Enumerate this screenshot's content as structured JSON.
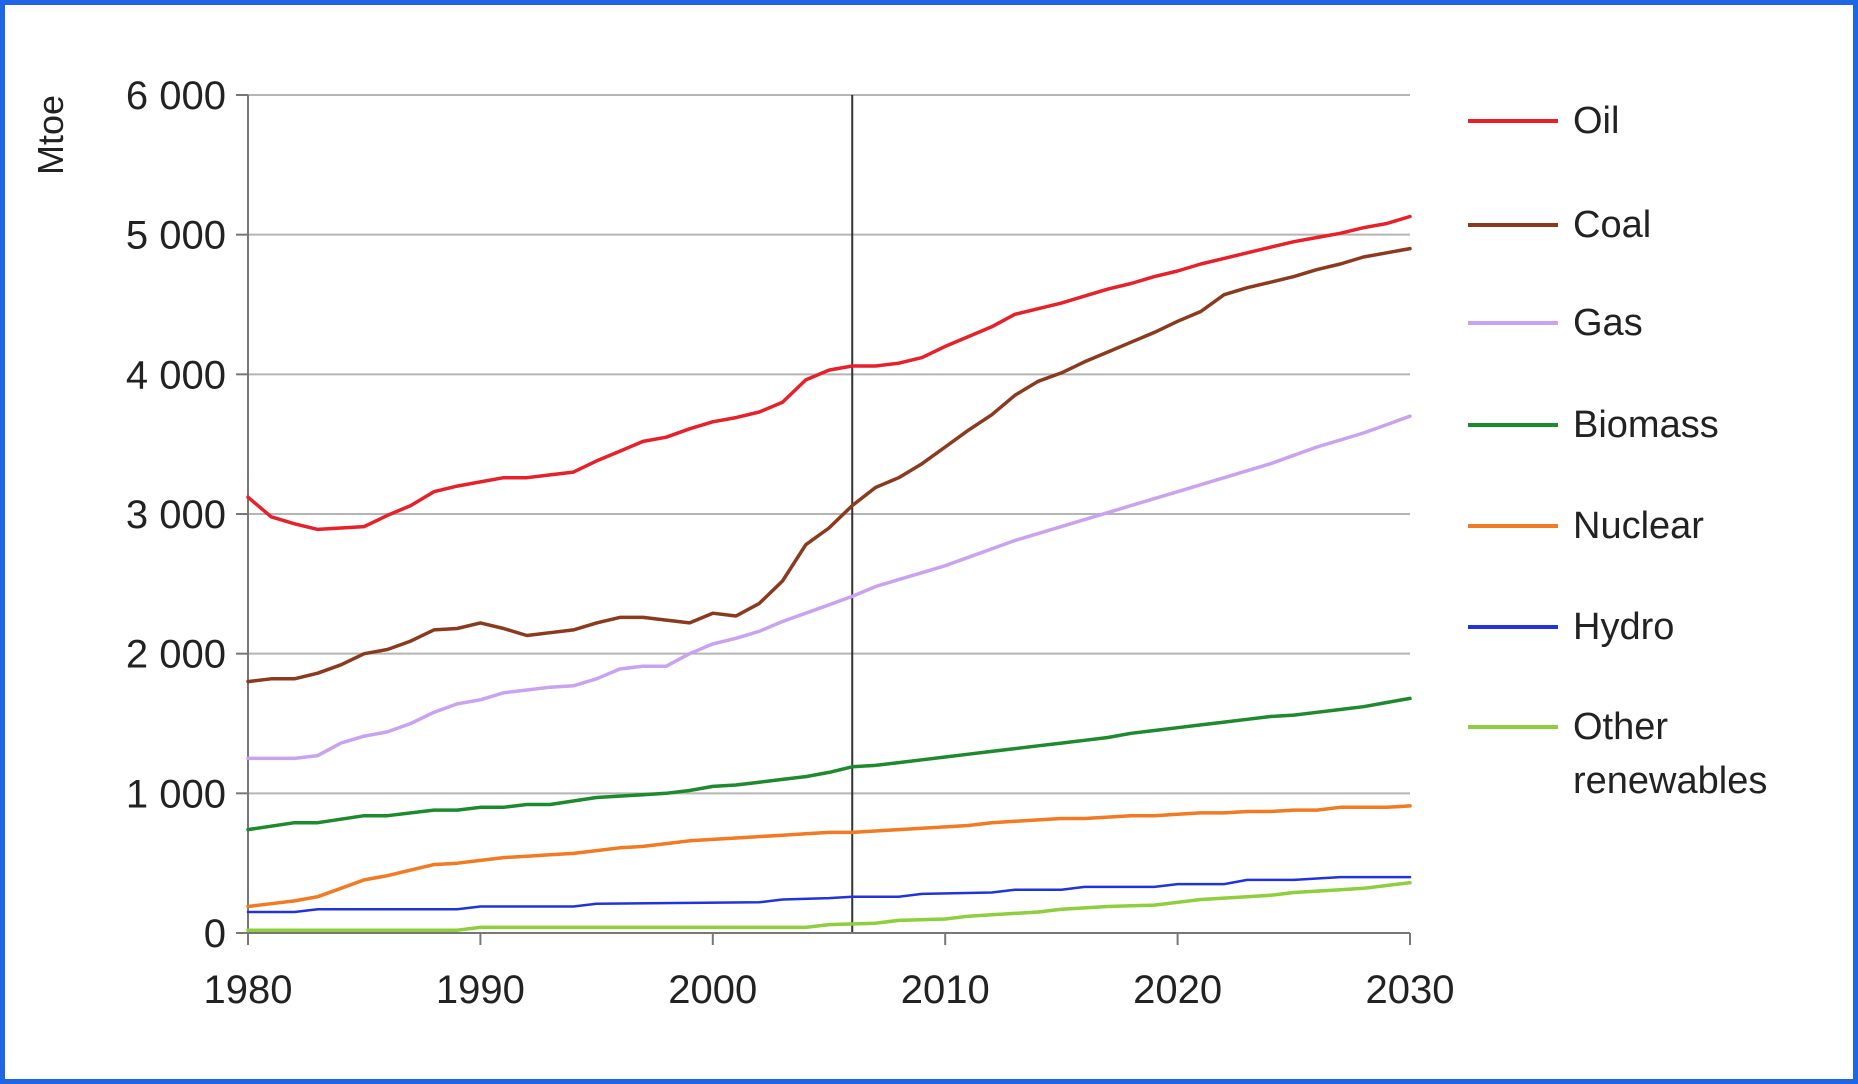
{
  "frame_color": "#1f66e5",
  "chart_data": {
    "type": "line",
    "title": "",
    "xlabel": "",
    "ylabel": "Mtoe",
    "xlim": [
      1980,
      2030
    ],
    "ylim": [
      0,
      6000
    ],
    "x_ticks": [
      1980,
      1990,
      2000,
      2010,
      2020,
      2030
    ],
    "y_ticks": [
      0,
      1000,
      2000,
      3000,
      4000,
      5000,
      6000
    ],
    "y_tick_labels": [
      "0",
      "1 000",
      "2 000",
      "3 000",
      "4 000",
      "5 000",
      "6 000"
    ],
    "grid": "horizontal",
    "vertical_markers": [
      1980,
      2006
    ],
    "legend_position": "right",
    "x": [
      1980,
      1985,
      1990,
      1995,
      2000,
      2005,
      2006,
      2010,
      2015,
      2020,
      2025,
      2030
    ],
    "series": [
      {
        "name": "Oil",
        "color": "#e8202a",
        "points": [
          [
            1980,
            3120
          ],
          [
            1981,
            2980
          ],
          [
            1982,
            2930
          ],
          [
            1983,
            2890
          ],
          [
            1984,
            2900
          ],
          [
            1985,
            2910
          ],
          [
            1986,
            2990
          ],
          [
            1987,
            3060
          ],
          [
            1988,
            3160
          ],
          [
            1989,
            3200
          ],
          [
            1990,
            3230
          ],
          [
            1991,
            3260
          ],
          [
            1992,
            3260
          ],
          [
            1993,
            3280
          ],
          [
            1994,
            3300
          ],
          [
            1995,
            3380
          ],
          [
            1996,
            3450
          ],
          [
            1997,
            3520
          ],
          [
            1998,
            3550
          ],
          [
            1999,
            3610
          ],
          [
            2000,
            3660
          ],
          [
            2001,
            3690
          ],
          [
            2002,
            3730
          ],
          [
            2003,
            3800
          ],
          [
            2004,
            3960
          ],
          [
            2005,
            4030
          ],
          [
            2006,
            4060
          ],
          [
            2007,
            4060
          ],
          [
            2008,
            4080
          ],
          [
            2009,
            4120
          ],
          [
            2010,
            4200
          ],
          [
            2011,
            4270
          ],
          [
            2012,
            4340
          ],
          [
            2013,
            4430
          ],
          [
            2014,
            4470
          ],
          [
            2015,
            4510
          ],
          [
            2016,
            4560
          ],
          [
            2017,
            4610
          ],
          [
            2018,
            4650
          ],
          [
            2019,
            4700
          ],
          [
            2020,
            4740
          ],
          [
            2021,
            4790
          ],
          [
            2022,
            4830
          ],
          [
            2023,
            4870
          ],
          [
            2024,
            4910
          ],
          [
            2025,
            4950
          ],
          [
            2026,
            4980
          ],
          [
            2027,
            5010
          ],
          [
            2028,
            5050
          ],
          [
            2029,
            5080
          ],
          [
            2030,
            5130
          ]
        ]
      },
      {
        "name": "Coal",
        "color": "#8b3a1e",
        "points": [
          [
            1980,
            1800
          ],
          [
            1981,
            1820
          ],
          [
            1982,
            1820
          ],
          [
            1983,
            1860
          ],
          [
            1984,
            1920
          ],
          [
            1985,
            2000
          ],
          [
            1986,
            2030
          ],
          [
            1987,
            2090
          ],
          [
            1988,
            2170
          ],
          [
            1989,
            2180
          ],
          [
            1990,
            2220
          ],
          [
            1991,
            2180
          ],
          [
            1992,
            2130
          ],
          [
            1993,
            2150
          ],
          [
            1994,
            2170
          ],
          [
            1995,
            2220
          ],
          [
            1996,
            2260
          ],
          [
            1997,
            2260
          ],
          [
            1998,
            2240
          ],
          [
            1999,
            2220
          ],
          [
            2000,
            2290
          ],
          [
            2001,
            2270
          ],
          [
            2002,
            2360
          ],
          [
            2003,
            2520
          ],
          [
            2004,
            2780
          ],
          [
            2005,
            2900
          ],
          [
            2006,
            3060
          ],
          [
            2007,
            3190
          ],
          [
            2008,
            3260
          ],
          [
            2009,
            3360
          ],
          [
            2010,
            3480
          ],
          [
            2011,
            3600
          ],
          [
            2012,
            3710
          ],
          [
            2013,
            3850
          ],
          [
            2014,
            3950
          ],
          [
            2015,
            4010
          ],
          [
            2016,
            4090
          ],
          [
            2017,
            4160
          ],
          [
            2018,
            4230
          ],
          [
            2019,
            4300
          ],
          [
            2020,
            4380
          ],
          [
            2021,
            4450
          ],
          [
            2022,
            4570
          ],
          [
            2023,
            4620
          ],
          [
            2024,
            4660
          ],
          [
            2025,
            4700
          ],
          [
            2026,
            4750
          ],
          [
            2027,
            4790
          ],
          [
            2028,
            4840
          ],
          [
            2029,
            4870
          ],
          [
            2030,
            4900
          ]
        ]
      },
      {
        "name": "Gas",
        "color": "#c9a3ef",
        "points": [
          [
            1980,
            1250
          ],
          [
            1982,
            1250
          ],
          [
            1983,
            1270
          ],
          [
            1984,
            1360
          ],
          [
            1985,
            1410
          ],
          [
            1986,
            1440
          ],
          [
            1987,
            1500
          ],
          [
            1988,
            1580
          ],
          [
            1989,
            1640
          ],
          [
            1990,
            1670
          ],
          [
            1991,
            1720
          ],
          [
            1992,
            1740
          ],
          [
            1993,
            1760
          ],
          [
            1994,
            1770
          ],
          [
            1995,
            1820
          ],
          [
            1996,
            1890
          ],
          [
            1997,
            1910
          ],
          [
            1998,
            1910
          ],
          [
            1999,
            2000
          ],
          [
            2000,
            2070
          ],
          [
            2001,
            2110
          ],
          [
            2002,
            2160
          ],
          [
            2003,
            2230
          ],
          [
            2004,
            2290
          ],
          [
            2005,
            2350
          ],
          [
            2006,
            2410
          ],
          [
            2007,
            2480
          ],
          [
            2008,
            2530
          ],
          [
            2009,
            2580
          ],
          [
            2010,
            2630
          ],
          [
            2011,
            2690
          ],
          [
            2012,
            2750
          ],
          [
            2013,
            2810
          ],
          [
            2014,
            2860
          ],
          [
            2015,
            2910
          ],
          [
            2016,
            2960
          ],
          [
            2017,
            3010
          ],
          [
            2018,
            3060
          ],
          [
            2019,
            3110
          ],
          [
            2020,
            3160
          ],
          [
            2021,
            3210
          ],
          [
            2022,
            3260
          ],
          [
            2023,
            3310
          ],
          [
            2024,
            3360
          ],
          [
            2025,
            3420
          ],
          [
            2026,
            3480
          ],
          [
            2027,
            3530
          ],
          [
            2028,
            3580
          ],
          [
            2029,
            3640
          ],
          [
            2030,
            3700
          ]
        ]
      },
      {
        "name": "Biomass",
        "color": "#1e8a2e",
        "points": [
          [
            1980,
            740
          ],
          [
            1982,
            790
          ],
          [
            1983,
            790
          ],
          [
            1985,
            840
          ],
          [
            1986,
            840
          ],
          [
            1988,
            880
          ],
          [
            1989,
            880
          ],
          [
            1990,
            900
          ],
          [
            1991,
            900
          ],
          [
            1992,
            920
          ],
          [
            1993,
            920
          ],
          [
            1995,
            970
          ],
          [
            1996,
            980
          ],
          [
            1997,
            990
          ],
          [
            1998,
            1000
          ],
          [
            1999,
            1020
          ],
          [
            2000,
            1050
          ],
          [
            2001,
            1060
          ],
          [
            2002,
            1080
          ],
          [
            2003,
            1100
          ],
          [
            2004,
            1120
          ],
          [
            2005,
            1150
          ],
          [
            2006,
            1190
          ],
          [
            2007,
            1200
          ],
          [
            2008,
            1220
          ],
          [
            2009,
            1240
          ],
          [
            2010,
            1260
          ],
          [
            2011,
            1280
          ],
          [
            2012,
            1300
          ],
          [
            2013,
            1320
          ],
          [
            2014,
            1340
          ],
          [
            2015,
            1360
          ],
          [
            2016,
            1380
          ],
          [
            2017,
            1400
          ],
          [
            2018,
            1430
          ],
          [
            2019,
            1450
          ],
          [
            2020,
            1470
          ],
          [
            2021,
            1490
          ],
          [
            2022,
            1510
          ],
          [
            2023,
            1530
          ],
          [
            2024,
            1550
          ],
          [
            2025,
            1560
          ],
          [
            2026,
            1580
          ],
          [
            2027,
            1600
          ],
          [
            2028,
            1620
          ],
          [
            2029,
            1650
          ],
          [
            2030,
            1680
          ]
        ]
      },
      {
        "name": "Nuclear",
        "color": "#f27a22",
        "points": [
          [
            1980,
            190
          ],
          [
            1981,
            210
          ],
          [
            1982,
            230
          ],
          [
            1983,
            260
          ],
          [
            1984,
            320
          ],
          [
            1985,
            380
          ],
          [
            1986,
            410
          ],
          [
            1987,
            450
          ],
          [
            1988,
            490
          ],
          [
            1989,
            500
          ],
          [
            1990,
            520
          ],
          [
            1991,
            540
          ],
          [
            1992,
            550
          ],
          [
            1993,
            560
          ],
          [
            1994,
            570
          ],
          [
            1995,
            590
          ],
          [
            1996,
            610
          ],
          [
            1997,
            620
          ],
          [
            1998,
            640
          ],
          [
            1999,
            660
          ],
          [
            2000,
            670
          ],
          [
            2001,
            680
          ],
          [
            2002,
            690
          ],
          [
            2003,
            700
          ],
          [
            2004,
            710
          ],
          [
            2005,
            720
          ],
          [
            2006,
            720
          ],
          [
            2007,
            730
          ],
          [
            2008,
            740
          ],
          [
            2009,
            750
          ],
          [
            2010,
            760
          ],
          [
            2011,
            770
          ],
          [
            2012,
            790
          ],
          [
            2013,
            800
          ],
          [
            2014,
            810
          ],
          [
            2015,
            820
          ],
          [
            2016,
            820
          ],
          [
            2017,
            830
          ],
          [
            2018,
            840
          ],
          [
            2019,
            840
          ],
          [
            2020,
            850
          ],
          [
            2021,
            860
          ],
          [
            2022,
            860
          ],
          [
            2023,
            870
          ],
          [
            2024,
            870
          ],
          [
            2025,
            880
          ],
          [
            2026,
            880
          ],
          [
            2027,
            900
          ],
          [
            2028,
            900
          ],
          [
            2029,
            900
          ],
          [
            2030,
            910
          ]
        ]
      },
      {
        "name": "Hydro",
        "color": "#2233dd",
        "points": [
          [
            1980,
            150
          ],
          [
            1982,
            150
          ],
          [
            1983,
            170
          ],
          [
            1989,
            170
          ],
          [
            1990,
            190
          ],
          [
            1994,
            190
          ],
          [
            1995,
            210
          ],
          [
            2002,
            220
          ],
          [
            2003,
            240
          ],
          [
            2005,
            250
          ],
          [
            2006,
            260
          ],
          [
            2008,
            260
          ],
          [
            2009,
            280
          ],
          [
            2012,
            290
          ],
          [
            2013,
            310
          ],
          [
            2015,
            310
          ],
          [
            2016,
            330
          ],
          [
            2019,
            330
          ],
          [
            2020,
            350
          ],
          [
            2022,
            350
          ],
          [
            2023,
            380
          ],
          [
            2025,
            380
          ],
          [
            2026,
            390
          ],
          [
            2027,
            400
          ],
          [
            2030,
            400
          ]
        ]
      },
      {
        "name": "Other renewables",
        "color": "#8fce3c",
        "points": [
          [
            1980,
            20
          ],
          [
            1989,
            20
          ],
          [
            1990,
            40
          ],
          [
            2004,
            40
          ],
          [
            2005,
            60
          ],
          [
            2007,
            70
          ],
          [
            2008,
            90
          ],
          [
            2010,
            100
          ],
          [
            2011,
            120
          ],
          [
            2012,
            130
          ],
          [
            2013,
            140
          ],
          [
            2014,
            150
          ],
          [
            2015,
            170
          ],
          [
            2016,
            180
          ],
          [
            2017,
            190
          ],
          [
            2019,
            200
          ],
          [
            2020,
            220
          ],
          [
            2021,
            240
          ],
          [
            2022,
            250
          ],
          [
            2023,
            260
          ],
          [
            2024,
            270
          ],
          [
            2025,
            290
          ],
          [
            2026,
            300
          ],
          [
            2027,
            310
          ],
          [
            2028,
            320
          ],
          [
            2029,
            340
          ],
          [
            2030,
            360
          ]
        ]
      }
    ],
    "legend_labels": [
      "Oil",
      "Coal",
      "Gas",
      "Biomass",
      "Nuclear",
      "Hydro",
      "Other",
      "renewables"
    ]
  }
}
